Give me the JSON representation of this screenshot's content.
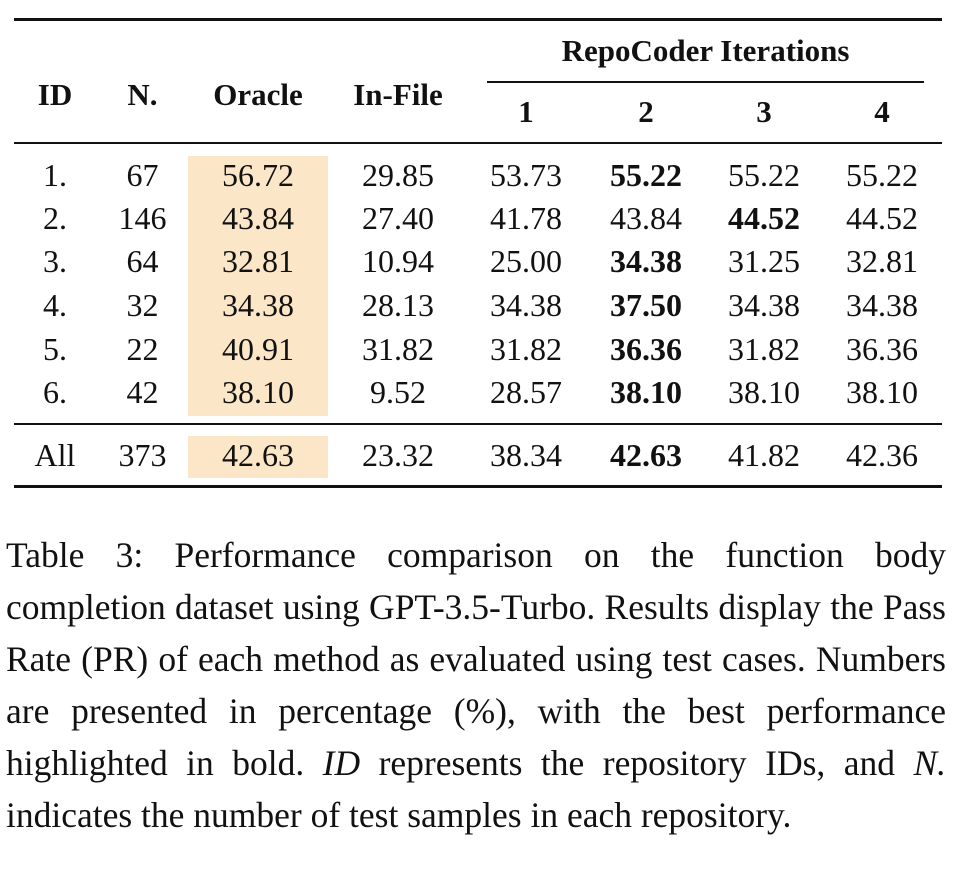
{
  "table": {
    "header": {
      "id": "ID",
      "n": "N.",
      "oracle": "Oracle",
      "infile": "In-File",
      "group": "RepoCoder Iterations",
      "iterations": [
        "1",
        "2",
        "3",
        "4"
      ]
    },
    "rows": [
      {
        "id": "1.",
        "n": "67",
        "oracle": "56.72",
        "infile": "29.85",
        "it": [
          "53.73",
          "55.22",
          "55.22",
          "55.22"
        ],
        "best": 1
      },
      {
        "id": "2.",
        "n": "146",
        "oracle": "43.84",
        "infile": "27.40",
        "it": [
          "41.78",
          "43.84",
          "44.52",
          "44.52"
        ],
        "best": 2
      },
      {
        "id": "3.",
        "n": "64",
        "oracle": "32.81",
        "infile": "10.94",
        "it": [
          "25.00",
          "34.38",
          "31.25",
          "32.81"
        ],
        "best": 1
      },
      {
        "id": "4.",
        "n": "32",
        "oracle": "34.38",
        "infile": "28.13",
        "it": [
          "34.38",
          "37.50",
          "34.38",
          "34.38"
        ],
        "best": 1
      },
      {
        "id": "5.",
        "n": "22",
        "oracle": "40.91",
        "infile": "31.82",
        "it": [
          "31.82",
          "36.36",
          "31.82",
          "36.36"
        ],
        "best": 1
      },
      {
        "id": "6.",
        "n": "42",
        "oracle": "38.10",
        "infile": "9.52",
        "it": [
          "28.57",
          "38.10",
          "38.10",
          "38.10"
        ],
        "best": 1
      }
    ],
    "total": {
      "id": "All",
      "n": "373",
      "oracle": "42.63",
      "infile": "23.32",
      "it": [
        "38.34",
        "42.63",
        "41.82",
        "42.36"
      ],
      "best": 1
    },
    "oracle_highlight_color": "#fbe6c8"
  },
  "caption": {
    "part1": "Table 3: Performance comparison on the function body completion dataset using GPT-3.5-Turbo. Results display the Pass Rate (PR) of each method as evaluated using test cases. Numbers are presented in percentage (%), with the best performance highlighted in bold. ",
    "id_term": "ID",
    "part2": " represents the repository IDs, and ",
    "n_term": "N.",
    "part3": " indicates the number of test samples in each repository."
  }
}
